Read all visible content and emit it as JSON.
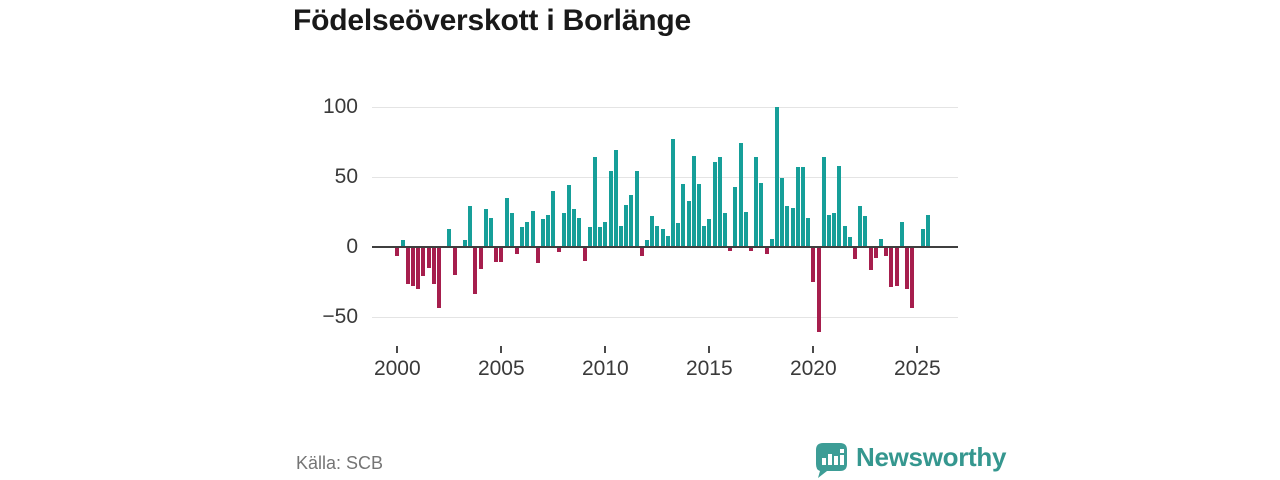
{
  "title": "Födelseöverskott i Borlänge",
  "source": "Källa: SCB",
  "branding": {
    "text": "Newsworthy"
  },
  "colors": {
    "positive_bar": "#169f99",
    "negative_bar": "#a61e4d",
    "zero_line": "#3f3f3f",
    "gridline": "#e4e4e4",
    "axis_text": "#3a3a3a",
    "brand_teal": "#35978f"
  },
  "chart_data": {
    "type": "bar",
    "title": "Födelseöverskott i Borlänge",
    "frequency": "quarterly",
    "values": [
      -6,
      5,
      -26,
      -27,
      -29,
      -20,
      -14,
      -26,
      -43,
      0,
      13,
      -19,
      0,
      5,
      29,
      -33,
      -15,
      27,
      21,
      -10,
      -10,
      35,
      24,
      -4,
      14,
      18,
      26,
      -11,
      20,
      23,
      40,
      -3,
      24,
      44,
      27,
      21,
      -9,
      14,
      64,
      14,
      18,
      54,
      69,
      15,
      30,
      37,
      54,
      -6,
      5,
      22,
      15,
      13,
      8,
      77,
      17,
      45,
      33,
      65,
      45,
      15,
      20,
      61,
      64,
      24,
      -2,
      43,
      74,
      25,
      -2,
      64,
      46,
      -4,
      6,
      100,
      49,
      29,
      28,
      57,
      57,
      21,
      -24,
      -60,
      64,
      23,
      24,
      58,
      15,
      7,
      -8,
      29,
      22,
      -16,
      -7,
      6,
      -6,
      -28,
      -27,
      18,
      -29,
      -43,
      0,
      13,
      23
    ],
    "x_ticks": [
      "2000",
      "2005",
      "2010",
      "2015",
      "2020",
      "2025"
    ],
    "y_ticks": [
      100,
      50,
      0,
      -50
    ],
    "y_tick_labels": [
      "100",
      "50",
      "0",
      "−50"
    ],
    "ylim": [
      -65,
      105
    ],
    "grid": "horizontal",
    "legend": "none"
  }
}
